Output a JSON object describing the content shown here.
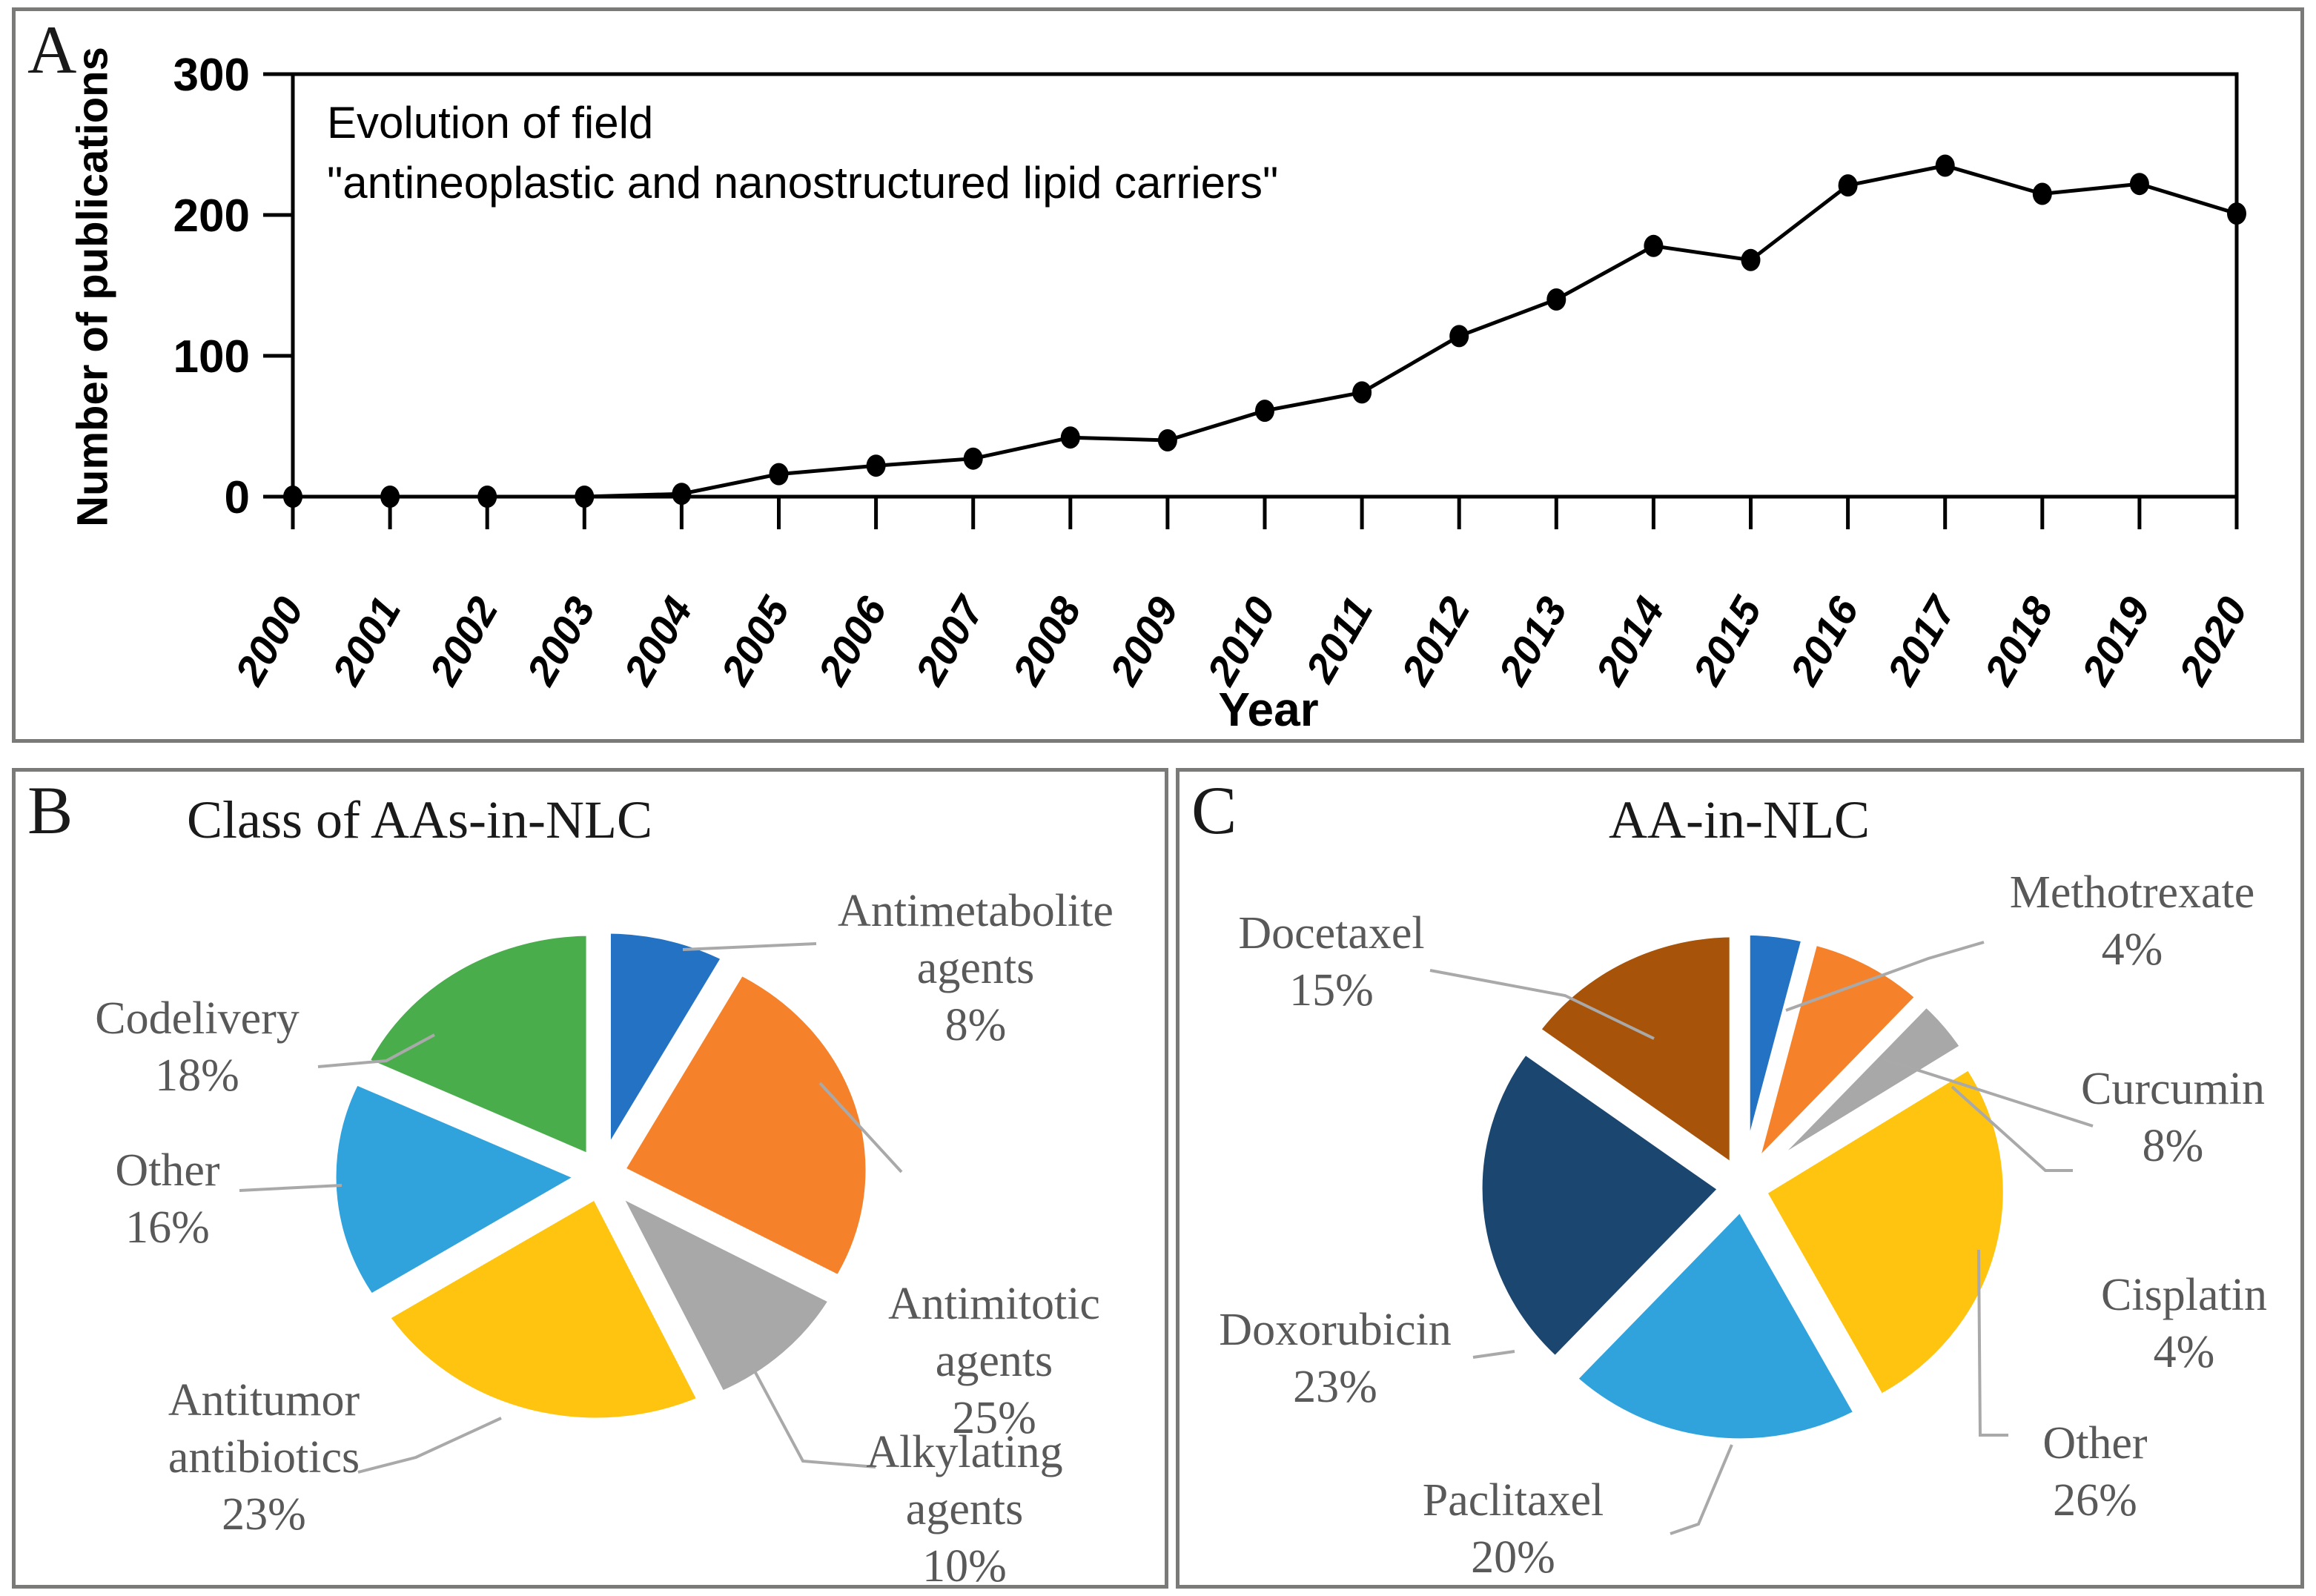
{
  "panels": {
    "a": {
      "label": "A",
      "title_line1": "Evolution of field",
      "title_line2": "\"antineoplastic and nanostructured lipid carriers\"",
      "y_axis_label": "Number of publications",
      "x_axis_label": "Year"
    },
    "b": {
      "label": "B",
      "title": "Class of AAs-in-NLC"
    },
    "c": {
      "label": "C",
      "title": "AA-in-NLC"
    }
  },
  "chart_data": [
    {
      "type": "line",
      "title": "Evolution of field \"antineoplastic and nanostructured lipid carriers\"",
      "xlabel": "Year",
      "ylabel": "Number of publications",
      "x": [
        2000,
        2001,
        2002,
        2003,
        2004,
        2005,
        2006,
        2007,
        2008,
        2009,
        2010,
        2011,
        2012,
        2013,
        2014,
        2015,
        2016,
        2017,
        2018,
        2019,
        2020
      ],
      "y": [
        0,
        0,
        0,
        0,
        2,
        16,
        22,
        27,
        42,
        40,
        61,
        74,
        114,
        140,
        178,
        168,
        221,
        235,
        215,
        222,
        201
      ],
      "ylim": [
        0,
        300
      ],
      "yticks": [
        0,
        100,
        200,
        300
      ],
      "grid": false,
      "legend": "none",
      "line_color": "#000000",
      "marker": "filled-circle"
    },
    {
      "type": "pie",
      "title": "Class of AAs-in-NLC",
      "start_angle_deg": 0,
      "direction": "clockwise",
      "slices": [
        {
          "label": "Antimetabolite agents",
          "label_lines": [
            "Antimetabolite",
            "agents"
          ],
          "value": 8,
          "color": "#2372c4"
        },
        {
          "label": "Antimitotic agents",
          "label_lines": [
            "Antimitotic",
            "agents"
          ],
          "value": 25,
          "color": "#f5822b"
        },
        {
          "label": "Alkylating agents",
          "label_lines": [
            "Alkylating",
            "agents"
          ],
          "value": 10,
          "color": "#a8a8a8"
        },
        {
          "label": "Antitumor antibiotics",
          "label_lines": [
            "Antitumor",
            "antibiotics"
          ],
          "value": 23,
          "color": "#fec40f"
        },
        {
          "label": "Other",
          "label_lines": [
            "Other"
          ],
          "value": 16,
          "color": "#30a2dc"
        },
        {
          "label": "Codelivery",
          "label_lines": [
            "Codelivery"
          ],
          "value": 18,
          "color": "#4aad4c"
        }
      ]
    },
    {
      "type": "pie",
      "title": "AA-in-NLC",
      "start_angle_deg": 0,
      "direction": "clockwise",
      "slices": [
        {
          "label": "Methotrexate",
          "label_lines": [
            "Methotrexate"
          ],
          "value": 4,
          "color": "#2372c4"
        },
        {
          "label": "Curcumin",
          "label_lines": [
            "Curcumin"
          ],
          "value": 8,
          "color": "#f5822b"
        },
        {
          "label": "Cisplatin",
          "label_lines": [
            "Cisplatin"
          ],
          "value": 4,
          "color": "#a8a8a8"
        },
        {
          "label": "Other",
          "label_lines": [
            "Other"
          ],
          "value": 26,
          "color": "#fec40f"
        },
        {
          "label": "Paclitaxel",
          "label_lines": [
            "Paclitaxel"
          ],
          "value": 20,
          "color": "#30a2dc"
        },
        {
          "label": "Doxorubicin",
          "label_lines": [
            "Doxorubicin"
          ],
          "value": 23,
          "color": "#1b4670"
        },
        {
          "label": "Docetaxel",
          "label_lines": [
            "Docetaxel"
          ],
          "value": 15,
          "color": "#a75309"
        }
      ]
    }
  ],
  "colors": {
    "label_text": "#595959",
    "leader_line": "#a9a9a9",
    "panel_border": "#7a7a78",
    "line_series": "#000000"
  }
}
